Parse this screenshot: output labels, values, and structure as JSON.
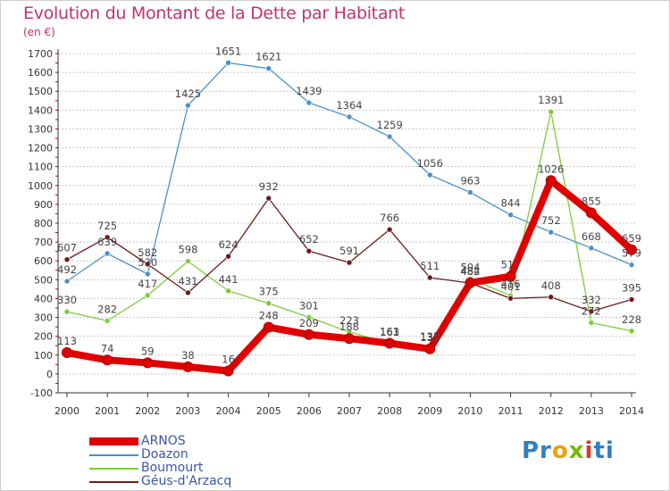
{
  "title": "Evolution du Montant de la Dette par Habitant",
  "subtitle": "(en €)",
  "logo": "Proxiti",
  "colors": {
    "title": "#c2336e",
    "ARNOS": "#e00000",
    "Doazon": "#4a90c8",
    "Boumourt": "#7ccc3a",
    "Geus": "#6b1a1a",
    "grid": "#bbbbbb",
    "axis": "#333333"
  },
  "chart_data": {
    "type": "line",
    "x": [
      2000,
      2001,
      2002,
      2003,
      2004,
      2005,
      2006,
      2007,
      2008,
      2009,
      2010,
      2011,
      2012,
      2013,
      2014
    ],
    "ylim": [
      -100,
      1700
    ],
    "yticks": [
      -100,
      0,
      100,
      200,
      300,
      400,
      500,
      600,
      700,
      800,
      900,
      1000,
      1100,
      1200,
      1300,
      1400,
      1500,
      1600,
      1700
    ],
    "grid": "horizontal dashed",
    "legend_position": "bottom-left",
    "series": [
      {
        "name": "Doazon",
        "color": "#4a90c8",
        "values": [
          492,
          639,
          530,
          1425,
          1651,
          1621,
          1439,
          1364,
          1259,
          1056,
          963,
          844,
          752,
          668,
          579
        ]
      },
      {
        "name": "Boumourt",
        "color": "#7ccc3a",
        "values": [
          330,
          282,
          417,
          598,
          441,
          375,
          301,
          223,
          161,
          137,
          504,
          416,
          1391,
          272,
          228
        ]
      },
      {
        "name": "Géus-d'Arzacq",
        "color": "#6b1a1a",
        "values": [
          607,
          725,
          582,
          431,
          624,
          932,
          652,
          591,
          766,
          511,
          482,
          401,
          408,
          332,
          395
        ]
      },
      {
        "name": "ARNOS",
        "color": "#e00000",
        "values": [
          113,
          74,
          59,
          38,
          16,
          248,
          209,
          188,
          163,
          133,
          484,
          517,
          1026,
          855,
          659
        ]
      }
    ]
  }
}
